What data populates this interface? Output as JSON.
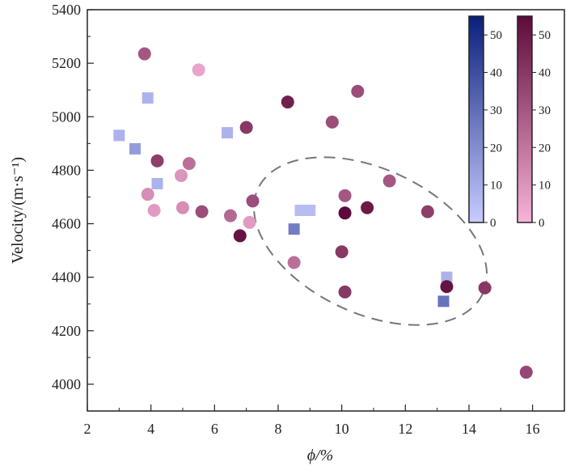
{
  "chart_data": {
    "type": "scatter",
    "xlabel": "ϕ/%",
    "ylabel": "Velocity/(m·s⁻¹)",
    "xlim": [
      2,
      17
    ],
    "ylim": [
      3900,
      5400
    ],
    "x_ticks": [
      2,
      4,
      6,
      8,
      10,
      12,
      14,
      16
    ],
    "y_ticks": [
      4000,
      4200,
      4400,
      4600,
      4800,
      5000,
      5200,
      5400
    ],
    "grid": false,
    "legend": "none",
    "series": [
      {
        "marker": "square",
        "colormap": [
          "#c8ccff",
          "#0a1f7a"
        ],
        "colorbar_range": [
          0,
          55
        ],
        "colorbar_ticks": [
          0,
          10,
          20,
          30,
          40,
          50
        ],
        "points": [
          {
            "x": 3.0,
            "y": 4930,
            "c": 8
          },
          {
            "x": 3.5,
            "y": 4880,
            "c": 15
          },
          {
            "x": 3.9,
            "y": 5070,
            "c": 8
          },
          {
            "x": 4.2,
            "y": 4750,
            "c": 8
          },
          {
            "x": 6.4,
            "y": 4940,
            "c": 8
          },
          {
            "x": 8.5,
            "y": 4580,
            "c": 25
          },
          {
            "x": 8.7,
            "y": 4650,
            "c": 5
          },
          {
            "x": 9.0,
            "y": 4650,
            "c": 5
          },
          {
            "x": 13.3,
            "y": 4400,
            "c": 8
          },
          {
            "x": 13.2,
            "y": 4310,
            "c": 28
          }
        ]
      },
      {
        "marker": "circle",
        "colormap": [
          "#f7b3d8",
          "#5e0a3a"
        ],
        "colorbar_range": [
          0,
          55
        ],
        "colorbar_ticks": [
          0,
          10,
          20,
          30,
          40,
          50
        ],
        "points": [
          {
            "x": 3.8,
            "y": 5235,
            "c": 30
          },
          {
            "x": 5.5,
            "y": 5175,
            "c": 5
          },
          {
            "x": 3.9,
            "y": 4710,
            "c": 12
          },
          {
            "x": 4.1,
            "y": 4650,
            "c": 8
          },
          {
            "x": 4.2,
            "y": 4835,
            "c": 38
          },
          {
            "x": 4.95,
            "y": 4780,
            "c": 10
          },
          {
            "x": 5.0,
            "y": 4660,
            "c": 12
          },
          {
            "x": 5.2,
            "y": 4825,
            "c": 22
          },
          {
            "x": 5.6,
            "y": 4645,
            "c": 33
          },
          {
            "x": 6.5,
            "y": 4630,
            "c": 24
          },
          {
            "x": 6.8,
            "y": 4555,
            "c": 52
          },
          {
            "x": 7.0,
            "y": 4960,
            "c": 40
          },
          {
            "x": 7.1,
            "y": 4605,
            "c": 8
          },
          {
            "x": 7.2,
            "y": 4685,
            "c": 33
          },
          {
            "x": 8.3,
            "y": 5055,
            "c": 48
          },
          {
            "x": 8.5,
            "y": 4455,
            "c": 22
          },
          {
            "x": 9.7,
            "y": 4980,
            "c": 33
          },
          {
            "x": 10.0,
            "y": 4495,
            "c": 40
          },
          {
            "x": 10.1,
            "y": 4705,
            "c": 30
          },
          {
            "x": 10.1,
            "y": 4640,
            "c": 55
          },
          {
            "x": 10.1,
            "y": 4345,
            "c": 40
          },
          {
            "x": 10.5,
            "y": 5095,
            "c": 33
          },
          {
            "x": 10.8,
            "y": 4660,
            "c": 50
          },
          {
            "x": 11.5,
            "y": 4760,
            "c": 30
          },
          {
            "x": 12.7,
            "y": 4645,
            "c": 38
          },
          {
            "x": 13.3,
            "y": 4365,
            "c": 52
          },
          {
            "x": 14.5,
            "y": 4360,
            "c": 40
          },
          {
            "x": 15.8,
            "y": 4045,
            "c": 35
          }
        ]
      }
    ],
    "annotations": [
      {
        "type": "dashed-ellipse",
        "center": [
          10.9,
          4535
        ],
        "semi_axis_x": 3.9,
        "semi_axis_y": 270,
        "rotation_deg": -25,
        "color": "#777777"
      }
    ]
  }
}
